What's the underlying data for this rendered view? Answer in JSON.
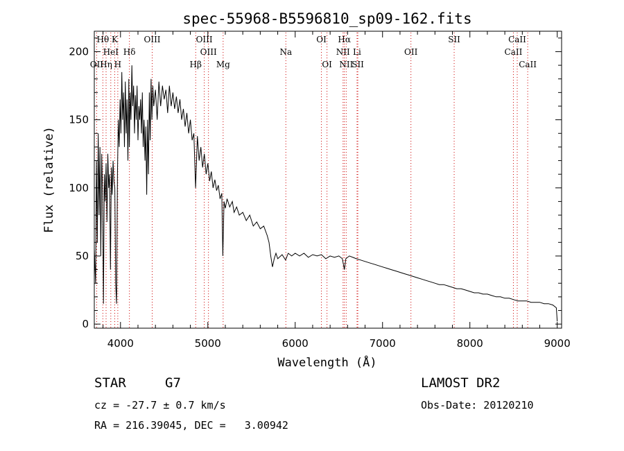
{
  "chart_data": {
    "type": "line",
    "title": "spec-55968-B5596810_sp09-162.fits",
    "xlabel": "Wavelength (Å)",
    "ylabel": "Flux (relative)",
    "xlim": [
      3700,
      9050
    ],
    "ylim": [
      -3,
      215
    ],
    "x_ticks": [
      4000,
      5000,
      6000,
      7000,
      8000,
      9000
    ],
    "y_ticks": [
      0,
      50,
      100,
      150,
      200
    ],
    "series": [
      {
        "points": [
          [
            3700,
            55
          ],
          [
            3715,
            30
          ],
          [
            3725,
            120
          ],
          [
            3735,
            60
          ],
          [
            3745,
            140
          ],
          [
            3755,
            80
          ],
          [
            3765,
            130
          ],
          [
            3775,
            50
          ],
          [
            3785,
            125
          ],
          [
            3795,
            95
          ],
          [
            3805,
            15
          ],
          [
            3815,
            110
          ],
          [
            3825,
            90
          ],
          [
            3835,
            118
          ],
          [
            3845,
            75
          ],
          [
            3855,
            125
          ],
          [
            3865,
            100
          ],
          [
            3875,
            110
          ],
          [
            3885,
            40
          ],
          [
            3895,
            115
          ],
          [
            3905,
            95
          ],
          [
            3915,
            120
          ],
          [
            3925,
            105
          ],
          [
            3935,
            100
          ],
          [
            3945,
            30
          ],
          [
            3955,
            15
          ],
          [
            3965,
            110
          ],
          [
            3975,
            150
          ],
          [
            3985,
            130
          ],
          [
            3995,
            165
          ],
          [
            4005,
            140
          ],
          [
            4015,
            185
          ],
          [
            4025,
            150
          ],
          [
            4035,
            170
          ],
          [
            4045,
            130
          ],
          [
            4055,
            178
          ],
          [
            4065,
            140
          ],
          [
            4075,
            165
          ],
          [
            4085,
            120
          ],
          [
            4095,
            180
          ],
          [
            4102,
            130
          ],
          [
            4110,
            170
          ],
          [
            4120,
            150
          ],
          [
            4130,
            190
          ],
          [
            4140,
            160
          ],
          [
            4150,
            175
          ],
          [
            4160,
            140
          ],
          [
            4170,
            168
          ],
          [
            4180,
            150
          ],
          [
            4190,
            175
          ],
          [
            4200,
            135
          ],
          [
            4210,
            160
          ],
          [
            4220,
            150
          ],
          [
            4230,
            165
          ],
          [
            4240,
            140
          ],
          [
            4250,
            170
          ],
          [
            4260,
            130
          ],
          [
            4270,
            150
          ],
          [
            4280,
            120
          ],
          [
            4290,
            145
          ],
          [
            4300,
            95
          ],
          [
            4310,
            150
          ],
          [
            4320,
            110
          ],
          [
            4330,
            170
          ],
          [
            4340,
            135
          ],
          [
            4350,
            180
          ],
          [
            4360,
            150
          ],
          [
            4370,
            175
          ],
          [
            4380,
            160
          ],
          [
            4400,
            172
          ],
          [
            4420,
            150
          ],
          [
            4440,
            178
          ],
          [
            4460,
            160
          ],
          [
            4480,
            175
          ],
          [
            4500,
            165
          ],
          [
            4520,
            172
          ],
          [
            4540,
            155
          ],
          [
            4560,
            175
          ],
          [
            4580,
            160
          ],
          [
            4600,
            170
          ],
          [
            4620,
            158
          ],
          [
            4640,
            167
          ],
          [
            4660,
            155
          ],
          [
            4680,
            165
          ],
          [
            4700,
            150
          ],
          [
            4720,
            158
          ],
          [
            4740,
            145
          ],
          [
            4760,
            155
          ],
          [
            4780,
            140
          ],
          [
            4800,
            150
          ],
          [
            4820,
            135
          ],
          [
            4840,
            140
          ],
          [
            4860,
            100
          ],
          [
            4880,
            138
          ],
          [
            4900,
            120
          ],
          [
            4920,
            130
          ],
          [
            4940,
            115
          ],
          [
            4960,
            125
          ],
          [
            4980,
            110
          ],
          [
            5000,
            118
          ],
          [
            5020,
            105
          ],
          [
            5040,
            112
          ],
          [
            5060,
            100
          ],
          [
            5080,
            106
          ],
          [
            5100,
            98
          ],
          [
            5120,
            102
          ],
          [
            5140,
            92
          ],
          [
            5160,
            96
          ],
          [
            5172,
            50
          ],
          [
            5185,
            90
          ],
          [
            5200,
            85
          ],
          [
            5220,
            92
          ],
          [
            5250,
            86
          ],
          [
            5280,
            90
          ],
          [
            5300,
            82
          ],
          [
            5330,
            86
          ],
          [
            5360,
            80
          ],
          [
            5400,
            82
          ],
          [
            5440,
            76
          ],
          [
            5480,
            80
          ],
          [
            5520,
            72
          ],
          [
            5560,
            75
          ],
          [
            5600,
            70
          ],
          [
            5640,
            72
          ],
          [
            5680,
            65
          ],
          [
            5700,
            60
          ],
          [
            5720,
            50
          ],
          [
            5740,
            42
          ],
          [
            5760,
            48
          ],
          [
            5780,
            52
          ],
          [
            5800,
            48
          ],
          [
            5850,
            51
          ],
          [
            5890,
            47
          ],
          [
            5920,
            52
          ],
          [
            5960,
            50
          ],
          [
            6000,
            52
          ],
          [
            6050,
            50
          ],
          [
            6100,
            52
          ],
          [
            6150,
            49
          ],
          [
            6200,
            51
          ],
          [
            6250,
            50
          ],
          [
            6300,
            51
          ],
          [
            6350,
            48
          ],
          [
            6400,
            50
          ],
          [
            6450,
            49
          ],
          [
            6500,
            50
          ],
          [
            6540,
            48
          ],
          [
            6563,
            40
          ],
          [
            6580,
            48
          ],
          [
            6620,
            50
          ],
          [
            6660,
            49
          ],
          [
            6700,
            48
          ],
          [
            6750,
            47
          ],
          [
            6800,
            46
          ],
          [
            6850,
            45
          ],
          [
            6900,
            44
          ],
          [
            6950,
            43
          ],
          [
            7000,
            42
          ],
          [
            7050,
            41
          ],
          [
            7100,
            40
          ],
          [
            7150,
            39
          ],
          [
            7200,
            38
          ],
          [
            7250,
            37
          ],
          [
            7300,
            36
          ],
          [
            7350,
            35
          ],
          [
            7400,
            34
          ],
          [
            7450,
            33
          ],
          [
            7500,
            32
          ],
          [
            7550,
            31
          ],
          [
            7600,
            30
          ],
          [
            7650,
            29
          ],
          [
            7700,
            29
          ],
          [
            7750,
            28
          ],
          [
            7800,
            27
          ],
          [
            7850,
            26
          ],
          [
            7900,
            26
          ],
          [
            7950,
            25
          ],
          [
            8000,
            24
          ],
          [
            8050,
            23
          ],
          [
            8100,
            23
          ],
          [
            8150,
            22
          ],
          [
            8200,
            22
          ],
          [
            8250,
            21
          ],
          [
            8300,
            20
          ],
          [
            8350,
            20
          ],
          [
            8400,
            19
          ],
          [
            8450,
            19
          ],
          [
            8500,
            18
          ],
          [
            8550,
            17
          ],
          [
            8600,
            17
          ],
          [
            8650,
            17
          ],
          [
            8700,
            16
          ],
          [
            8750,
            16
          ],
          [
            8800,
            16
          ],
          [
            8850,
            15
          ],
          [
            8900,
            15
          ],
          [
            8950,
            14
          ],
          [
            8990,
            12
          ],
          [
            9000,
            2
          ]
        ]
      }
    ],
    "line_markers": [
      {
        "label": "Hθ",
        "x": 3798,
        "row": 0
      },
      {
        "label": "K",
        "x": 3934,
        "row": 0
      },
      {
        "label": "OII",
        "x": 3727,
        "row": 2
      },
      {
        "label": "Hη",
        "x": 3835,
        "row": 2
      },
      {
        "label": "H",
        "x": 3969,
        "row": 2
      },
      {
        "label": "HeI",
        "x": 3889,
        "row": 1
      },
      {
        "label": "Hδ",
        "x": 4102,
        "row": 1
      },
      {
        "label": "OIII",
        "x": 4363,
        "row": 0
      },
      {
        "label": "OIII",
        "x": 4959,
        "row": 0
      },
      {
        "label": "OIII",
        "x": 5007,
        "row": 1
      },
      {
        "label": "Hβ",
        "x": 4861,
        "row": 2
      },
      {
        "label": "Mg",
        "x": 5175,
        "row": 2
      },
      {
        "label": "Na",
        "x": 5893,
        "row": 1
      },
      {
        "label": "OI",
        "x": 6300,
        "row": 0
      },
      {
        "label": "OI",
        "x": 6364,
        "row": 2
      },
      {
        "label": "Hα",
        "x": 6563,
        "row": 0
      },
      {
        "label": "NII",
        "x": 6548,
        "row": 1
      },
      {
        "label": "NII",
        "x": 6584,
        "row": 2
      },
      {
        "label": "Li",
        "x": 6708,
        "row": 1
      },
      {
        "label": "SII",
        "x": 6717,
        "row": 2
      },
      {
        "label": "OII",
        "x": 7325,
        "row": 1
      },
      {
        "label": "SII",
        "x": 7820,
        "row": 0
      },
      {
        "label": "CaII",
        "x": 8498,
        "row": 1
      },
      {
        "label": "CaII",
        "x": 8542,
        "row": 0
      },
      {
        "label": "CaII",
        "x": 8662,
        "row": 2
      }
    ],
    "grid": false
  },
  "info": {
    "object_class": "STAR",
    "subclass": "G7",
    "survey": "LAMOST DR2",
    "redshift": "cz = -27.7 ± 0.7 km/s",
    "obs_date": "Obs-Date: 20120210",
    "coords": "RA = 216.39045, DEC =   3.00942"
  },
  "colors": {
    "spectrum": "#000000",
    "line_markers": "#cc0000"
  }
}
